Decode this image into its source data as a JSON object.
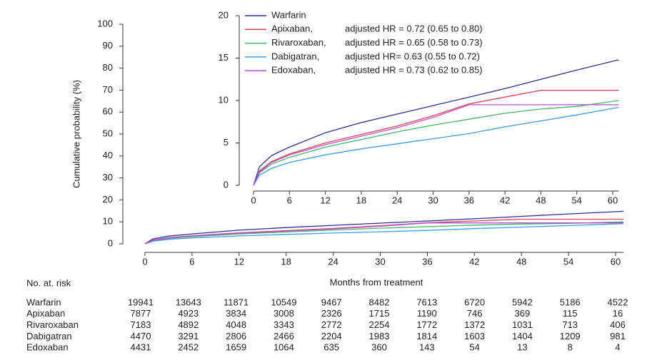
{
  "chart_data": [
    {
      "type": "line",
      "ylabel": "Cumulative probability (%)",
      "xlabel": "Months from treatment",
      "xlim": [
        0,
        61
      ],
      "ylim": [
        0,
        100
      ],
      "xticks": [
        0,
        6,
        12,
        18,
        24,
        30,
        36,
        42,
        48,
        54,
        60
      ],
      "yticks": [
        0,
        10,
        20,
        30,
        40,
        50,
        60,
        70,
        80,
        90,
        100
      ],
      "x": [
        0,
        1,
        3,
        6,
        12,
        18,
        24,
        30,
        36,
        42,
        48,
        54,
        61
      ],
      "series": [
        {
          "color": "#2b2f8f",
          "values": [
            0,
            2.2,
            3.5,
            4.5,
            6.2,
            7.4,
            8.4,
            9.4,
            10.4,
            11.4,
            12.5,
            13.6,
            14.8
          ]
        },
        {
          "color": "#e0405a",
          "values": [
            0,
            1.7,
            2.8,
            3.7,
            5.0,
            6.0,
            7.0,
            8.2,
            9.6,
            10.4,
            11.2,
            11.2,
            11.2
          ]
        },
        {
          "color": "#3fb56a",
          "values": [
            0,
            1.5,
            2.5,
            3.3,
            4.5,
            5.4,
            6.3,
            7.1,
            7.8,
            8.5,
            9.0,
            9.3,
            10.0
          ]
        },
        {
          "color": "#3c9be8",
          "values": [
            0,
            1.2,
            2.0,
            2.7,
            3.6,
            4.3,
            4.9,
            5.5,
            6.1,
            6.9,
            7.6,
            8.3,
            9.2
          ]
        },
        {
          "color": "#b54fd0",
          "values": [
            0,
            1.6,
            2.7,
            3.6,
            4.8,
            5.8,
            6.8,
            8.0,
            9.5,
            9.5,
            9.5,
            9.5,
            9.5
          ]
        }
      ]
    },
    {
      "type": "line",
      "xlim": [
        0,
        61
      ],
      "ylim": [
        0,
        20
      ],
      "xticks": [
        0,
        6,
        12,
        18,
        24,
        30,
        36,
        42,
        48,
        54,
        60
      ],
      "yticks": [
        0,
        5,
        10,
        15,
        20
      ],
      "x": [
        0,
        1,
        3,
        6,
        12,
        18,
        24,
        30,
        36,
        42,
        48,
        54,
        61
      ],
      "series": [
        {
          "name": "Warfarin",
          "color": "#2b2f8f",
          "values": [
            0,
            2.2,
            3.5,
            4.5,
            6.2,
            7.4,
            8.4,
            9.4,
            10.4,
            11.4,
            12.5,
            13.6,
            14.8
          ]
        },
        {
          "name": "Apixaban,",
          "label": "adjusted HR = 0.72 (0.65 to 0.80)",
          "color": "#e0405a",
          "values": [
            0,
            1.7,
            2.8,
            3.7,
            5.0,
            6.0,
            7.0,
            8.2,
            9.6,
            10.4,
            11.2,
            11.2,
            11.2
          ]
        },
        {
          "name": "Rivaroxaban,",
          "label": "adjusted HR = 0.65 (0.58 to 0.73)",
          "color": "#3fb56a",
          "values": [
            0,
            1.5,
            2.5,
            3.3,
            4.5,
            5.4,
            6.3,
            7.1,
            7.8,
            8.5,
            9.0,
            9.3,
            10.0
          ]
        },
        {
          "name": "Dabigatran,",
          "label": "adjusted HR= 0.63 (0.55 to 0.72)",
          "color": "#3c9be8",
          "values": [
            0,
            1.2,
            2.0,
            2.7,
            3.6,
            4.3,
            4.9,
            5.5,
            6.1,
            6.9,
            7.6,
            8.3,
            9.2
          ]
        },
        {
          "name": "Edoxaban,",
          "label": "adjusted HR = 0.73 (0.62 to 0.85)",
          "color": "#b54fd0",
          "values": [
            0,
            1.6,
            2.7,
            3.6,
            4.8,
            5.8,
            6.8,
            8.0,
            9.5,
            9.5,
            9.5,
            9.5,
            9.5
          ]
        }
      ]
    }
  ],
  "risk_table": {
    "title": "No. at. risk",
    "rows": [
      {
        "name": "Warfarin",
        "values": [
          "19941",
          "13643",
          "11871",
          "10549",
          "9467",
          "8482",
          "7613",
          "6720",
          "5942",
          "5186",
          "4522"
        ]
      },
      {
        "name": "Apixaban",
        "values": [
          "7877",
          "4923",
          "3834",
          "3008",
          "2326",
          "1715",
          "1190",
          "746",
          "369",
          "115",
          "16"
        ]
      },
      {
        "name": "Rivaroxaban",
        "values": [
          "7183",
          "4892",
          "4048",
          "3343",
          "2772",
          "2254",
          "1772",
          "1372",
          "1031",
          "713",
          "406"
        ]
      },
      {
        "name": "Dabigatran",
        "values": [
          "4470",
          "3291",
          "2806",
          "2466",
          "2204",
          "1983",
          "1814",
          "1603",
          "1404",
          "1209",
          "981"
        ]
      },
      {
        "name": "Edoxaban",
        "values": [
          "4431",
          "2452",
          "1659",
          "1064",
          "635",
          "360",
          "143",
          "54",
          "13",
          "8",
          "4"
        ]
      }
    ]
  }
}
